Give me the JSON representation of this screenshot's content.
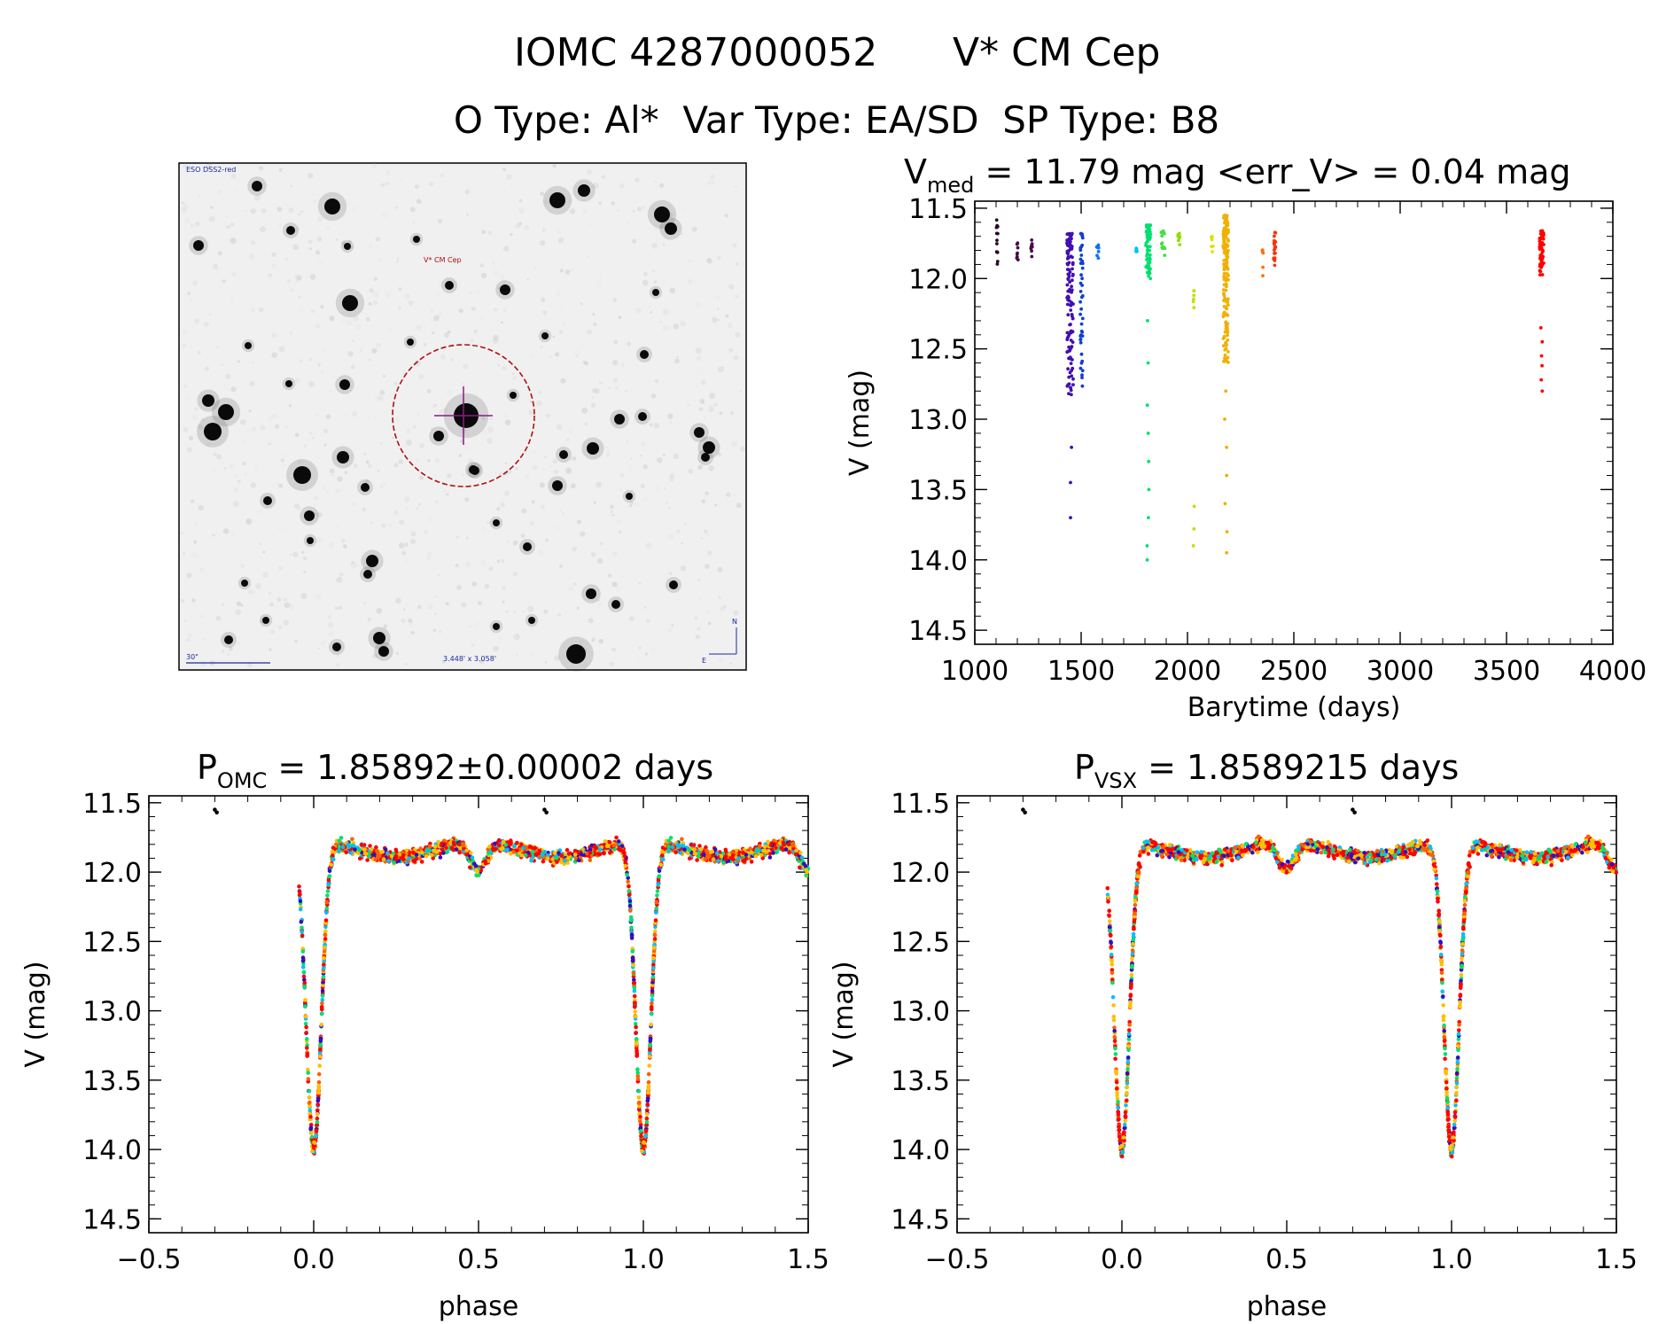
{
  "header": {
    "line1_id": "IOMC 4287000052",
    "line1_name": "V* CM Cep",
    "line2": "O Type: Al*  Var Type: EA/SD  SP Type: B8"
  },
  "sky_image": {
    "survey_label": "ESO DSS2-red",
    "target_label": "V* CM Cep",
    "scale_label": "30\"",
    "fov_label": "3.448' x 3.058'",
    "north_label": "N",
    "east_label": "E",
    "colors": {
      "circle": "#b01010",
      "crosshair": "#8a1a8a",
      "annotation": "#1a2aa0"
    }
  },
  "chart_data": [
    {
      "id": "lightcurve",
      "type": "scatter",
      "title_main": "V",
      "title_sub": "med",
      "title_rest": " = 11.79 mag <err_V> = 0.04 mag",
      "xlabel": "Barytime (days)",
      "ylabel": "V (mag)",
      "xlim": [
        1000,
        4000
      ],
      "ylim": [
        14.6,
        11.45
      ],
      "xticks": [
        1000,
        1500,
        2000,
        2500,
        3000,
        3500,
        4000
      ],
      "yticks": [
        11.5,
        12.0,
        12.5,
        13.0,
        13.5,
        14.0,
        14.5
      ],
      "groups": [
        {
          "x": 1105,
          "xw": 6,
          "ymin": 11.58,
          "ymax": 11.95,
          "n": 14,
          "color": "#2a0a2a"
        },
        {
          "x": 1200,
          "xw": 8,
          "ymin": 11.74,
          "ymax": 11.88,
          "n": 8,
          "color": "#4a0a4a"
        },
        {
          "x": 1268,
          "xw": 8,
          "ymin": 11.72,
          "ymax": 11.86,
          "n": 8,
          "color": "#4a0a4a"
        },
        {
          "x": 1448,
          "xw": 30,
          "ymin": 11.68,
          "ymax": 12.85,
          "n": 120,
          "color": "#4010b0",
          "outliers": [
            13.2,
            13.45,
            13.7
          ]
        },
        {
          "x": 1502,
          "xw": 12,
          "ymin": 11.68,
          "ymax": 12.78,
          "n": 45,
          "color": "#1040d0"
        },
        {
          "x": 1578,
          "xw": 10,
          "ymin": 11.76,
          "ymax": 11.86,
          "n": 8,
          "color": "#1070ff"
        },
        {
          "x": 1760,
          "xw": 8,
          "ymin": 11.78,
          "ymax": 11.84,
          "n": 5,
          "color": "#00c0ff"
        },
        {
          "x": 1815,
          "xw": 22,
          "ymin": 11.62,
          "ymax": 12.0,
          "n": 70,
          "color": "#00e070",
          "outliers": [
            12.3,
            12.6,
            12.9,
            13.1,
            13.3,
            13.5,
            13.7,
            13.9,
            14.0
          ]
        },
        {
          "x": 1885,
          "xw": 18,
          "ymin": 11.66,
          "ymax": 11.86,
          "n": 14,
          "color": "#40e040"
        },
        {
          "x": 1960,
          "xw": 10,
          "ymin": 11.68,
          "ymax": 11.84,
          "n": 8,
          "color": "#90e000"
        },
        {
          "x": 2030,
          "xw": 12,
          "ymin": 12.08,
          "ymax": 12.25,
          "n": 6,
          "color": "#c0e000",
          "outliers": [
            13.62,
            13.78,
            13.9
          ]
        },
        {
          "x": 2115,
          "xw": 10,
          "ymin": 11.7,
          "ymax": 11.82,
          "n": 8,
          "color": "#e0e000"
        },
        {
          "x": 2180,
          "xw": 24,
          "ymin": 11.55,
          "ymax": 12.6,
          "n": 160,
          "color": "#f0b000",
          "outliers": [
            12.8,
            13.0,
            13.2,
            13.4,
            13.6,
            13.8,
            13.95
          ]
        },
        {
          "x": 2355,
          "xw": 8,
          "ymin": 11.78,
          "ymax": 11.82,
          "n": 4,
          "color": "#ff7000",
          "outliers": [
            11.92,
            11.98
          ]
        },
        {
          "x": 2410,
          "xw": 10,
          "ymin": 11.66,
          "ymax": 11.95,
          "n": 20,
          "color": "#ff3000"
        },
        {
          "x": 3665,
          "xw": 20,
          "ymin": 11.66,
          "ymax": 11.98,
          "n": 60,
          "color": "#ff0000",
          "outliers": [
            12.35,
            12.45,
            12.55,
            12.62,
            12.72,
            12.8
          ]
        }
      ]
    },
    {
      "id": "phase-omc",
      "type": "scatter",
      "title_main": "P",
      "title_sub": "OMC",
      "title_rest": " = 1.85892±0.00002 days",
      "xlabel": "phase",
      "ylabel": "V (mag)",
      "xlim": [
        -0.5,
        1.5
      ],
      "ylim": [
        14.6,
        11.45
      ],
      "xticks": [
        -0.5,
        0.0,
        0.5,
        1.0,
        1.5
      ],
      "xtick_labels": [
        "−0.5",
        "0.0",
        "0.5",
        "1.0",
        "1.5"
      ],
      "yticks": [
        11.5,
        12.0,
        12.5,
        13.0,
        13.5,
        14.0,
        14.5
      ],
      "model": {
        "base": 11.78,
        "primary_depth": 2.22,
        "primary_width": 0.032,
        "secondary_depth": 0.2,
        "secondary_width": 0.035
      },
      "colors": [
        "#ff0000",
        "#ff0000",
        "#ff0000",
        "#ffc000",
        "#ffc000",
        "#3010c0",
        "#00e070",
        "#00c0ff",
        "#ff6000"
      ]
    },
    {
      "id": "phase-vsx",
      "type": "scatter",
      "title_main": "P",
      "title_sub": "VSX",
      "title_rest": " = 1.8589215 days",
      "xlabel": "phase",
      "ylabel": "V (mag)",
      "xlim": [
        -0.5,
        1.5
      ],
      "ylim": [
        14.6,
        11.45
      ],
      "xticks": [
        -0.5,
        0.0,
        0.5,
        1.0,
        1.5
      ],
      "xtick_labels": [
        "−0.5",
        "0.0",
        "0.5",
        "1.0",
        "1.5"
      ],
      "yticks": [
        11.5,
        12.0,
        12.5,
        13.0,
        13.5,
        14.0,
        14.5
      ],
      "model": {
        "base": 11.78,
        "primary_depth": 2.22,
        "primary_width": 0.032,
        "secondary_depth": 0.2,
        "secondary_width": 0.035
      },
      "colors": [
        "#ff0000",
        "#ff0000",
        "#ff0000",
        "#ffc000",
        "#ffc000",
        "#3010c0",
        "#00e070",
        "#00c0ff",
        "#ff6000"
      ]
    }
  ]
}
